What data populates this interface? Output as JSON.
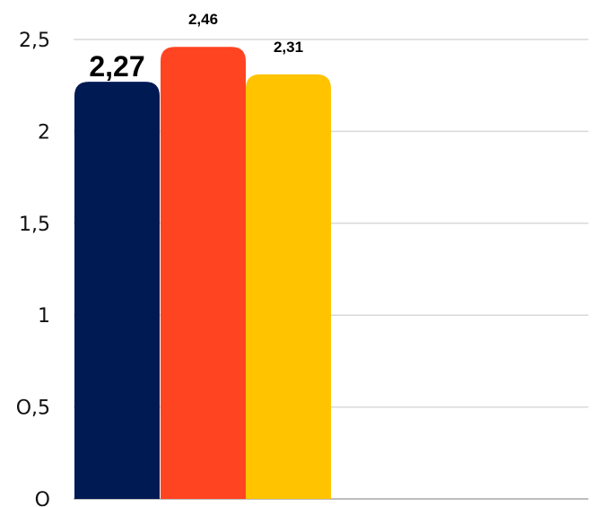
{
  "chart_data": {
    "type": "bar",
    "categories": [
      "",
      "",
      ""
    ],
    "values": [
      2.27,
      2.46,
      2.31
    ],
    "value_labels": [
      "2,27",
      "2,46",
      "2,31"
    ],
    "colors": [
      "#001a54",
      "#ff4422",
      "#ffc300"
    ],
    "title": "",
    "xlabel": "",
    "ylabel": "",
    "ylim": [
      0,
      2.5
    ],
    "yticks": [
      0,
      0.5,
      1,
      1.5,
      2,
      2.5
    ],
    "ytick_labels": [
      "O",
      "O,5",
      "1",
      "1,5",
      "2",
      "2,5"
    ],
    "grid": true
  }
}
